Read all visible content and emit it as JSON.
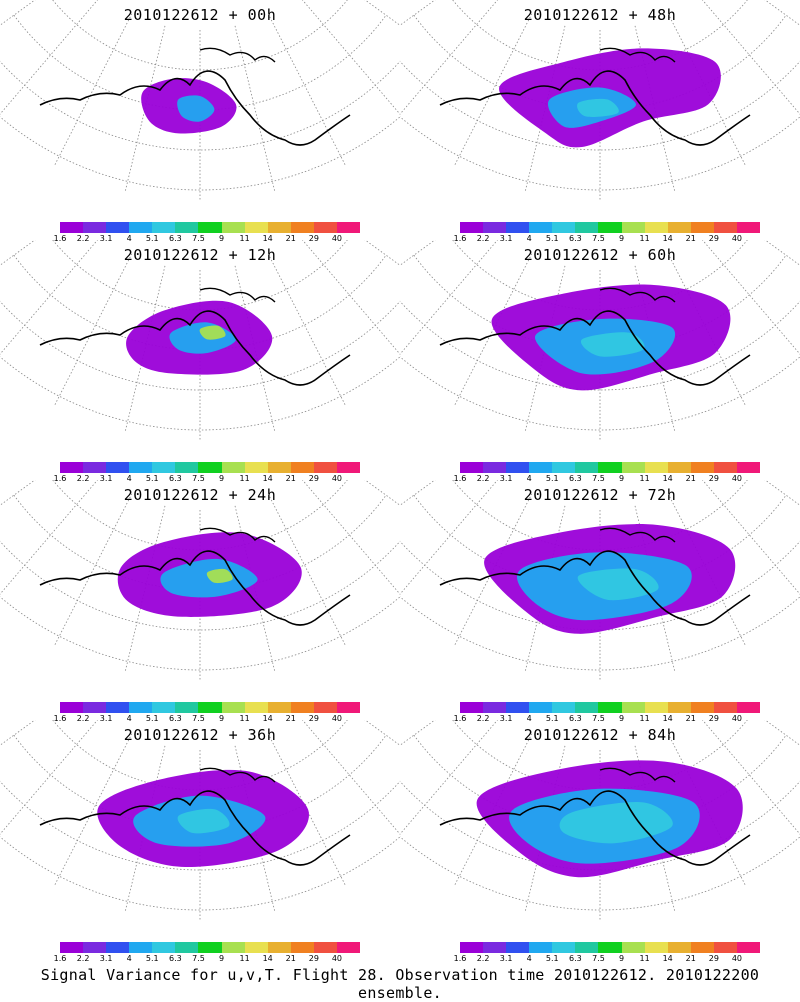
{
  "caption": "Signal Variance for u,v,T. Flight 28. Observation time 2010122612. 2010122200 ensemble.",
  "colorbar": {
    "colors": [
      "#9a00d8",
      "#7a2ae0",
      "#3050f0",
      "#20a8f0",
      "#30c8e0",
      "#20c8a0",
      "#10d020",
      "#a8e050",
      "#e8e050",
      "#e8b030",
      "#f08020",
      "#f05040",
      "#f01878"
    ],
    "labels": [
      "1.6",
      "2.2",
      "3.1",
      "4",
      "5.1",
      "6.3",
      "7.5",
      "9",
      "11",
      "14",
      "21",
      "29",
      "40"
    ]
  },
  "panels": [
    {
      "title": "2010122612 + 00h",
      "col": 0,
      "row": 0,
      "blobs": [
        {
          "c": "#9a00d8",
          "pts": [
            [
              0.34,
              0.38
            ],
            [
              0.42,
              0.3
            ],
            [
              0.52,
              0.32
            ],
            [
              0.6,
              0.45
            ],
            [
              0.56,
              0.58
            ],
            [
              0.44,
              0.62
            ],
            [
              0.36,
              0.55
            ]
          ]
        },
        {
          "c": "#20a8f0",
          "pts": [
            [
              0.44,
              0.42
            ],
            [
              0.5,
              0.4
            ],
            [
              0.54,
              0.48
            ],
            [
              0.5,
              0.55
            ],
            [
              0.45,
              0.52
            ]
          ]
        }
      ]
    },
    {
      "title": "2010122612 + 48h",
      "col": 1,
      "row": 0,
      "blobs": [
        {
          "c": "#9a00d8",
          "pts": [
            [
              0.22,
              0.35
            ],
            [
              0.4,
              0.2
            ],
            [
              0.62,
              0.12
            ],
            [
              0.82,
              0.2
            ],
            [
              0.8,
              0.45
            ],
            [
              0.62,
              0.55
            ],
            [
              0.45,
              0.7
            ],
            [
              0.35,
              0.62
            ]
          ]
        },
        {
          "c": "#20a8f0",
          "pts": [
            [
              0.36,
              0.42
            ],
            [
              0.5,
              0.35
            ],
            [
              0.6,
              0.45
            ],
            [
              0.5,
              0.55
            ],
            [
              0.4,
              0.58
            ]
          ]
        },
        {
          "c": "#30c8e0",
          "pts": [
            [
              0.44,
              0.44
            ],
            [
              0.52,
              0.42
            ],
            [
              0.55,
              0.5
            ],
            [
              0.46,
              0.52
            ]
          ]
        }
      ]
    },
    {
      "title": "2010122612 + 12h",
      "col": 0,
      "row": 1,
      "blobs": [
        {
          "c": "#9a00d8",
          "pts": [
            [
              0.3,
              0.4
            ],
            [
              0.4,
              0.25
            ],
            [
              0.58,
              0.2
            ],
            [
              0.7,
              0.4
            ],
            [
              0.62,
              0.6
            ],
            [
              0.42,
              0.62
            ],
            [
              0.32,
              0.55
            ]
          ]
        },
        {
          "c": "#20a8f0",
          "pts": [
            [
              0.42,
              0.38
            ],
            [
              0.52,
              0.32
            ],
            [
              0.6,
              0.42
            ],
            [
              0.52,
              0.5
            ],
            [
              0.44,
              0.48
            ]
          ]
        },
        {
          "c": "#a8e050",
          "pts": [
            [
              0.5,
              0.36
            ],
            [
              0.55,
              0.34
            ],
            [
              0.57,
              0.4
            ],
            [
              0.52,
              0.42
            ]
          ]
        }
      ]
    },
    {
      "title": "2010122612 + 60h",
      "col": 1,
      "row": 1,
      "blobs": [
        {
          "c": "#9a00d8",
          "pts": [
            [
              0.2,
              0.3
            ],
            [
              0.4,
              0.15
            ],
            [
              0.65,
              0.1
            ],
            [
              0.85,
              0.22
            ],
            [
              0.82,
              0.5
            ],
            [
              0.65,
              0.62
            ],
            [
              0.45,
              0.72
            ],
            [
              0.32,
              0.6
            ]
          ]
        },
        {
          "c": "#20a8f0",
          "pts": [
            [
              0.32,
              0.4
            ],
            [
              0.5,
              0.3
            ],
            [
              0.7,
              0.35
            ],
            [
              0.65,
              0.55
            ],
            [
              0.45,
              0.62
            ]
          ]
        },
        {
          "c": "#30c8e0",
          "pts": [
            [
              0.45,
              0.42
            ],
            [
              0.58,
              0.38
            ],
            [
              0.62,
              0.48
            ],
            [
              0.5,
              0.52
            ]
          ]
        }
      ]
    },
    {
      "title": "2010122612 + 24h",
      "col": 0,
      "row": 2,
      "blobs": [
        {
          "c": "#9a00d8",
          "pts": [
            [
              0.28,
              0.35
            ],
            [
              0.4,
              0.2
            ],
            [
              0.62,
              0.15
            ],
            [
              0.78,
              0.35
            ],
            [
              0.7,
              0.58
            ],
            [
              0.45,
              0.64
            ],
            [
              0.3,
              0.55
            ]
          ]
        },
        {
          "c": "#20a8f0",
          "pts": [
            [
              0.4,
              0.38
            ],
            [
              0.55,
              0.3
            ],
            [
              0.66,
              0.42
            ],
            [
              0.55,
              0.52
            ],
            [
              0.42,
              0.5
            ]
          ]
        },
        {
          "c": "#a8e050",
          "pts": [
            [
              0.52,
              0.38
            ],
            [
              0.57,
              0.36
            ],
            [
              0.59,
              0.42
            ],
            [
              0.54,
              0.44
            ]
          ]
        }
      ]
    },
    {
      "title": "2010122612 + 72h",
      "col": 1,
      "row": 2,
      "blobs": [
        {
          "c": "#9a00d8",
          "pts": [
            [
              0.18,
              0.3
            ],
            [
              0.4,
              0.14
            ],
            [
              0.66,
              0.1
            ],
            [
              0.86,
              0.24
            ],
            [
              0.84,
              0.52
            ],
            [
              0.66,
              0.64
            ],
            [
              0.44,
              0.74
            ],
            [
              0.3,
              0.62
            ]
          ]
        },
        {
          "c": "#20a8f0",
          "pts": [
            [
              0.28,
              0.36
            ],
            [
              0.5,
              0.26
            ],
            [
              0.74,
              0.34
            ],
            [
              0.7,
              0.56
            ],
            [
              0.46,
              0.66
            ],
            [
              0.32,
              0.56
            ]
          ]
        },
        {
          "c": "#30c8e0",
          "pts": [
            [
              0.44,
              0.4
            ],
            [
              0.6,
              0.36
            ],
            [
              0.66,
              0.48
            ],
            [
              0.52,
              0.54
            ]
          ]
        }
      ]
    },
    {
      "title": "2010122612 + 36h",
      "col": 0,
      "row": 3,
      "blobs": [
        {
          "c": "#9a00d8",
          "pts": [
            [
              0.22,
              0.34
            ],
            [
              0.4,
              0.18
            ],
            [
              0.64,
              0.14
            ],
            [
              0.8,
              0.36
            ],
            [
              0.72,
              0.6
            ],
            [
              0.46,
              0.7
            ],
            [
              0.28,
              0.58
            ]
          ]
        },
        {
          "c": "#20a8f0",
          "pts": [
            [
              0.32,
              0.4
            ],
            [
              0.5,
              0.28
            ],
            [
              0.68,
              0.4
            ],
            [
              0.58,
              0.56
            ],
            [
              0.38,
              0.56
            ]
          ]
        },
        {
          "c": "#30c8e0",
          "pts": [
            [
              0.44,
              0.4
            ],
            [
              0.54,
              0.36
            ],
            [
              0.58,
              0.46
            ],
            [
              0.48,
              0.5
            ]
          ]
        }
      ]
    },
    {
      "title": "2010122612 + 84h",
      "col": 1,
      "row": 3,
      "blobs": [
        {
          "c": "#9a00d8",
          "pts": [
            [
              0.16,
              0.3
            ],
            [
              0.4,
              0.12
            ],
            [
              0.68,
              0.08
            ],
            [
              0.88,
              0.24
            ],
            [
              0.86,
              0.54
            ],
            [
              0.66,
              0.66
            ],
            [
              0.44,
              0.76
            ],
            [
              0.28,
              0.62
            ]
          ]
        },
        {
          "c": "#20a8f0",
          "pts": [
            [
              0.26,
              0.36
            ],
            [
              0.5,
              0.24
            ],
            [
              0.76,
              0.32
            ],
            [
              0.72,
              0.58
            ],
            [
              0.46,
              0.68
            ],
            [
              0.3,
              0.56
            ]
          ]
        },
        {
          "c": "#30c8e0",
          "pts": [
            [
              0.42,
              0.38
            ],
            [
              0.62,
              0.32
            ],
            [
              0.7,
              0.46
            ],
            [
              0.54,
              0.56
            ],
            [
              0.4,
              0.5
            ]
          ]
        }
      ]
    }
  ]
}
